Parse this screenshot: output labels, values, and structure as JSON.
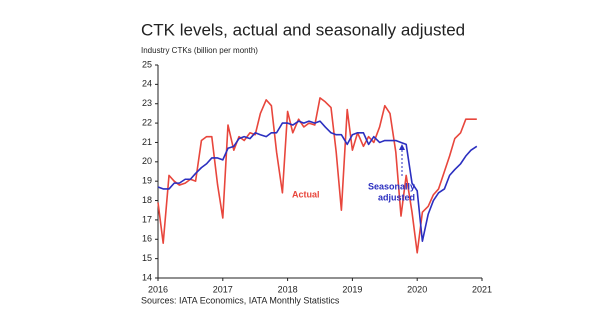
{
  "chart_data": {
    "type": "line",
    "title": "CTK levels, actual and seasonally adjusted",
    "y_label": "Industry CTKs (billion per month)",
    "source": "Sources: IATA Economics, IATA Monthly Statistics",
    "annotations": [
      "Actual",
      "Seasonally",
      "adjusted"
    ],
    "x": [
      2016,
      2016.08,
      2016.17,
      2016.25,
      2016.33,
      2016.42,
      2016.5,
      2016.58,
      2016.67,
      2016.75,
      2016.83,
      2016.92,
      2017,
      2017.08,
      2017.17,
      2017.25,
      2017.33,
      2017.42,
      2017.5,
      2017.58,
      2017.67,
      2017.75,
      2017.83,
      2017.92,
      2018,
      2018.08,
      2018.17,
      2018.25,
      2018.33,
      2018.42,
      2018.5,
      2018.58,
      2018.67,
      2018.75,
      2018.83,
      2018.92,
      2019,
      2019.08,
      2019.17,
      2019.25,
      2019.33,
      2019.42,
      2019.5,
      2019.58,
      2019.67,
      2019.75,
      2019.83,
      2019.92,
      2020,
      2020.08,
      2020.17,
      2020.25,
      2020.33,
      2020.42,
      2020.5,
      2020.58,
      2020.67,
      2020.75,
      2020.83,
      2020.92
    ],
    "series": [
      {
        "name": "Actual",
        "color": "#e8463c",
        "values": [
          17.9,
          15.8,
          19.3,
          19.0,
          18.8,
          18.9,
          19.1,
          19.0,
          21.1,
          21.3,
          21.3,
          18.8,
          17.1,
          21.9,
          20.6,
          21.3,
          21.1,
          21.5,
          21.4,
          22.5,
          23.2,
          22.9,
          20.5,
          18.4,
          22.6,
          21.5,
          22.2,
          21.8,
          22.0,
          21.9,
          23.3,
          23.1,
          22.8,
          20.5,
          17.5,
          22.7,
          20.6,
          21.5,
          20.8,
          21.3,
          21.0,
          21.8,
          22.9,
          22.5,
          20.5,
          17.2,
          19.3,
          17.4,
          15.3,
          17.4,
          17.7,
          18.3,
          18.6,
          19.5,
          20.3,
          21.2,
          21.5,
          22.2,
          22.2,
          22.2
        ]
      },
      {
        "name": "Seasonally adjusted",
        "color": "#2b2fc0",
        "values": [
          18.7,
          18.6,
          18.6,
          18.9,
          18.9,
          19.1,
          19.1,
          19.4,
          19.7,
          19.9,
          20.2,
          20.2,
          20.1,
          20.7,
          20.8,
          21.2,
          21.3,
          21.2,
          21.5,
          21.4,
          21.3,
          21.5,
          21.5,
          22.0,
          22.0,
          21.9,
          22.1,
          22.0,
          22.1,
          22.0,
          22.1,
          21.8,
          21.5,
          21.4,
          21.4,
          20.9,
          21.4,
          21.5,
          21.5,
          20.9,
          21.3,
          21.0,
          21.1,
          21.1,
          21.1,
          21.0,
          20.9,
          18.9,
          18.5,
          15.9,
          17.3,
          18.0,
          18.4,
          18.6,
          19.3,
          19.6,
          19.9,
          20.3,
          20.6,
          20.8
        ]
      }
    ],
    "xlim": [
      2016,
      2021
    ],
    "xticks": [
      2016,
      2017,
      2018,
      2019,
      2020,
      2021
    ],
    "ylim": [
      14,
      25
    ],
    "yticks": [
      14,
      15,
      16,
      17,
      18,
      19,
      20,
      21,
      22,
      23,
      24,
      25
    ],
    "grid": false
  }
}
